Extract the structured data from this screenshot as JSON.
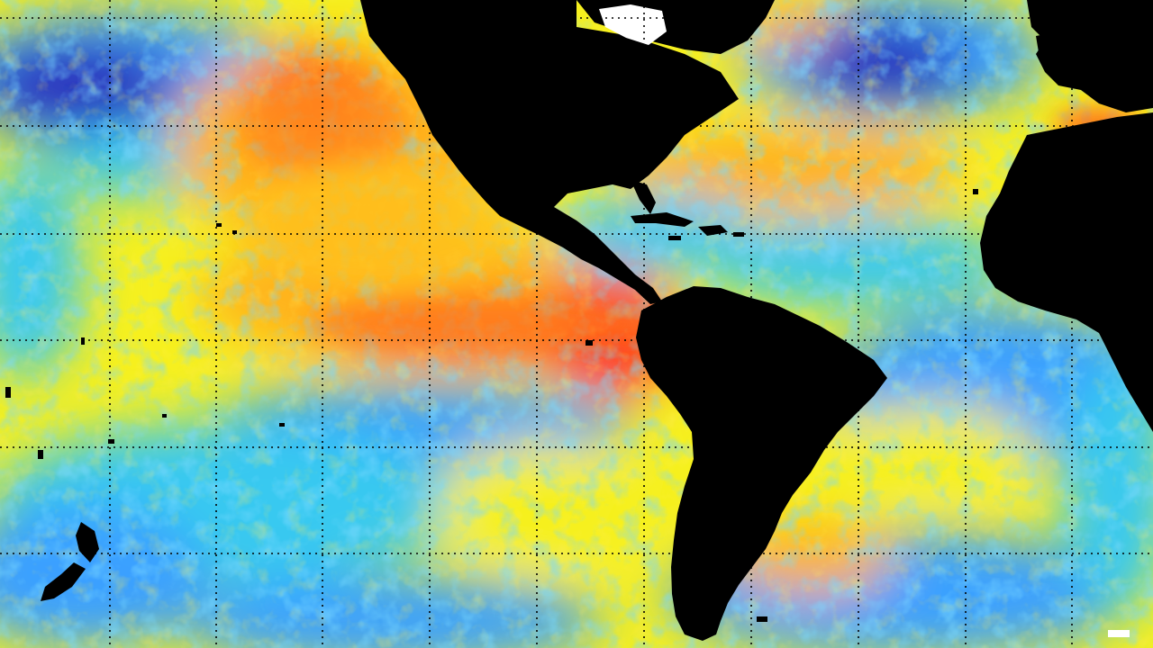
{
  "map": {
    "kind": "sea-surface-temperature-anomaly",
    "projection": "equirectangular",
    "grid": true,
    "colors": {
      "land": "#000000",
      "ice": "#ffffff",
      "grid": "#000000",
      "deep_cold": "#2a1fb8",
      "cold": "#3aa0ff",
      "cool": "#37c9f0",
      "neutral": "#f6f01e",
      "warm": "#ffb21a",
      "hot": "#ff6a1a",
      "very_hot": "#ff3b1a"
    },
    "features": {
      "land_masses": [
        "north-america",
        "central-america",
        "south-america",
        "africa",
        "greenland",
        "europe",
        "new-zealand",
        "caribbean-islands"
      ],
      "ocean_regions": [
        "north-pacific",
        "equatorial-pacific",
        "south-pacific",
        "north-atlantic",
        "tropical-atlantic",
        "south-atlantic"
      ]
    }
  }
}
